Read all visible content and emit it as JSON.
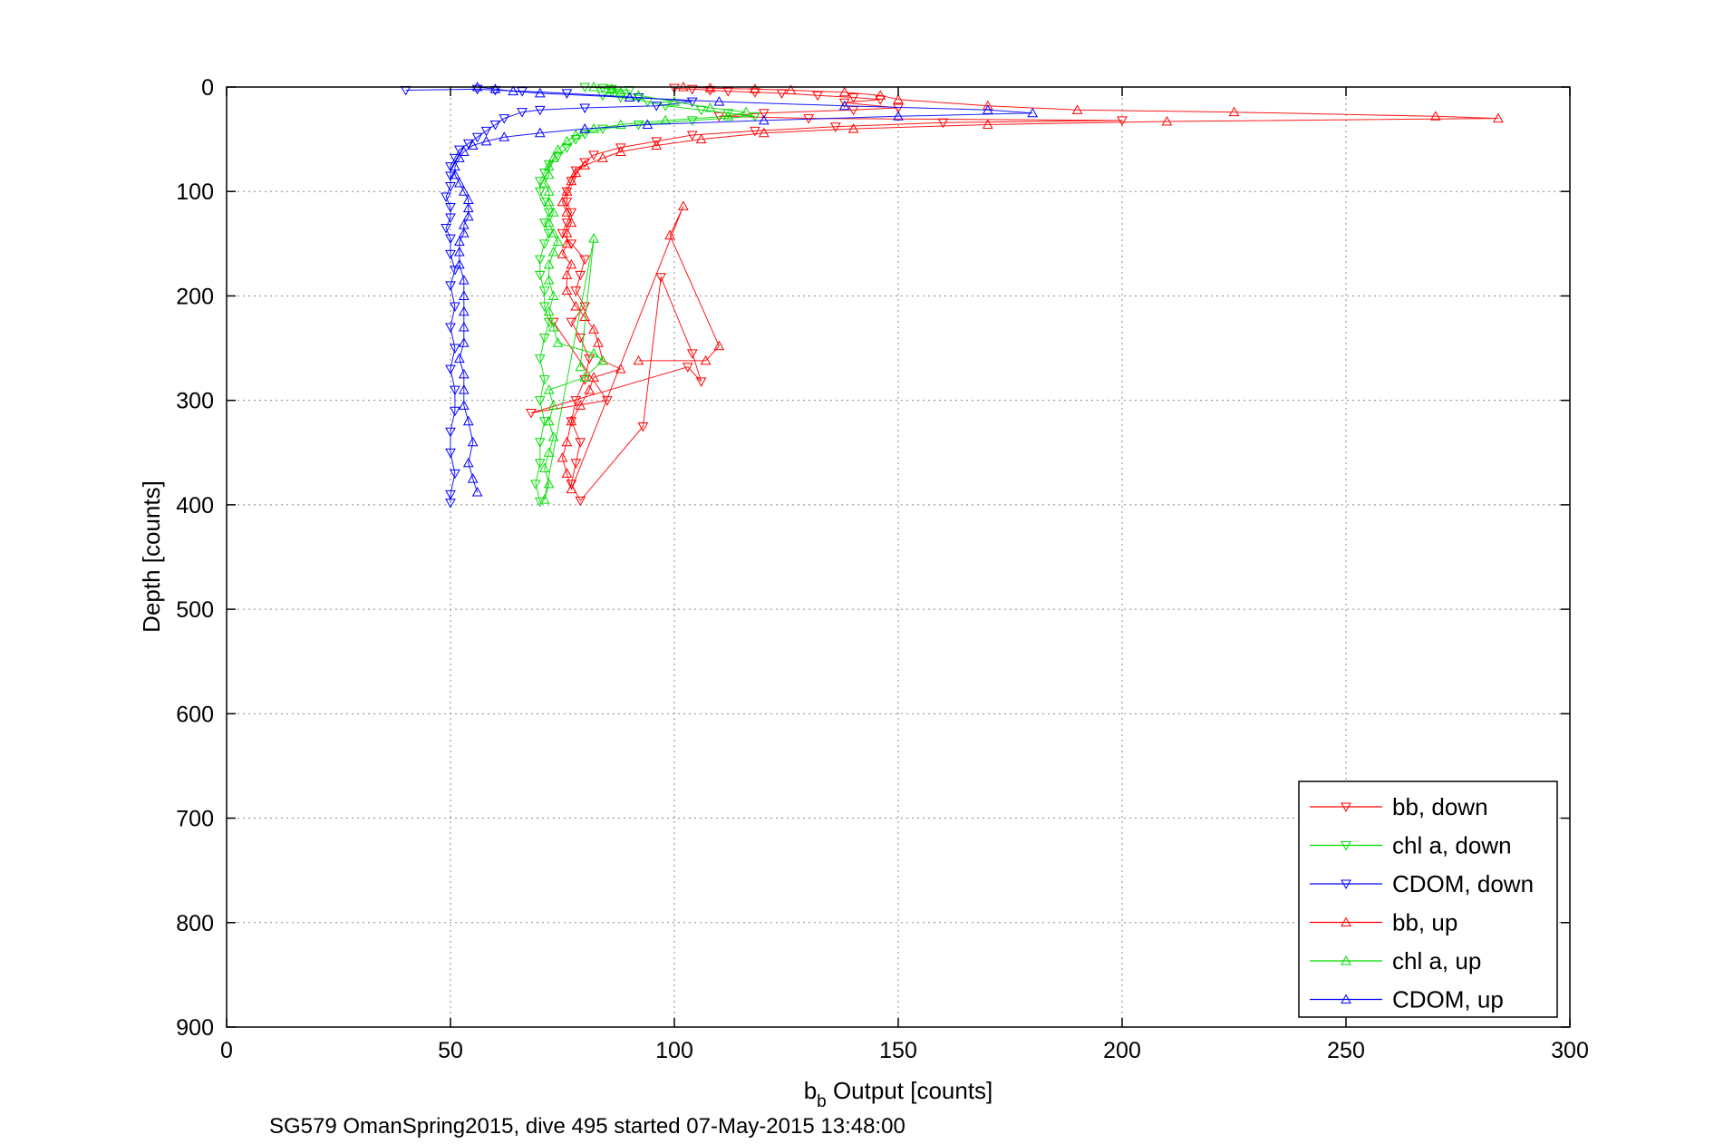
{
  "chart_data": {
    "type": "scatter",
    "title": "",
    "xlabel": {
      "main": "b",
      "sub": "b",
      "rest": " Output [counts]"
    },
    "ylabel": "Depth [counts]",
    "caption": "SG579 OmanSpring2015, dive 495 started 07-May-2015 13:48:00",
    "xlim": [
      0,
      300
    ],
    "ylim": [
      0,
      900
    ],
    "y_reversed": true,
    "grid": true,
    "legend_position": "bottom-right",
    "xticks": [
      "0",
      "50",
      "100",
      "150",
      "200",
      "250",
      "300"
    ],
    "yticks": [
      "0",
      "100",
      "200",
      "300",
      "400",
      "500",
      "600",
      "700",
      "800",
      "900"
    ],
    "series": [
      {
        "name": "bb, down",
        "color": "#ff0000",
        "marker": "triangle-down",
        "line": true,
        "points": [
          [
            100,
            1
          ],
          [
            104,
            2
          ],
          [
            108,
            3
          ],
          [
            112,
            4
          ],
          [
            118,
            5
          ],
          [
            124,
            6
          ],
          [
            132,
            8
          ],
          [
            140,
            10
          ],
          [
            146,
            12
          ],
          [
            138,
            15
          ],
          [
            150,
            20
          ],
          [
            140,
            22
          ],
          [
            120,
            25
          ],
          [
            110,
            28
          ],
          [
            130,
            30
          ],
          [
            200,
            32
          ],
          [
            160,
            34
          ],
          [
            136,
            38
          ],
          [
            118,
            42
          ],
          [
            104,
            46
          ],
          [
            96,
            52
          ],
          [
            88,
            58
          ],
          [
            82,
            65
          ],
          [
            80,
            72
          ],
          [
            78,
            80
          ],
          [
            77,
            90
          ],
          [
            76,
            100
          ],
          [
            76,
            110
          ],
          [
            77,
            120
          ],
          [
            76,
            130
          ],
          [
            75,
            140
          ],
          [
            77,
            150
          ],
          [
            80,
            165
          ],
          [
            79,
            180
          ],
          [
            78,
            195
          ],
          [
            80,
            210
          ],
          [
            77,
            225
          ],
          [
            79,
            240
          ],
          [
            81,
            260
          ],
          [
            80,
            280
          ],
          [
            78,
            300
          ],
          [
            77,
            320
          ],
          [
            79,
            340
          ],
          [
            78,
            360
          ],
          [
            77,
            380
          ],
          [
            79,
            396
          ],
          [
            93,
            325
          ],
          [
            97,
            182
          ],
          [
            104,
            255
          ],
          [
            106,
            282
          ],
          [
            103,
            268
          ],
          [
            68,
            312
          ],
          [
            85,
            300
          ],
          [
            73,
            225
          ]
        ]
      },
      {
        "name": "chl a, down",
        "color": "#00dd00",
        "marker": "triangle-down",
        "line": true,
        "points": [
          [
            80,
            0
          ],
          [
            84,
            1
          ],
          [
            86,
            2
          ],
          [
            90,
            3
          ],
          [
            86,
            5
          ],
          [
            84,
            8
          ],
          [
            88,
            10
          ],
          [
            94,
            14
          ],
          [
            98,
            18
          ],
          [
            106,
            22
          ],
          [
            112,
            25
          ],
          [
            118,
            28
          ],
          [
            104,
            32
          ],
          [
            92,
            36
          ],
          [
            84,
            40
          ],
          [
            80,
            45
          ],
          [
            78,
            50
          ],
          [
            76,
            58
          ],
          [
            74,
            66
          ],
          [
            72,
            74
          ],
          [
            71,
            82
          ],
          [
            70,
            90
          ],
          [
            70,
            100
          ],
          [
            71,
            110
          ],
          [
            72,
            120
          ],
          [
            71,
            130
          ],
          [
            72,
            140
          ],
          [
            71,
            150
          ],
          [
            70,
            165
          ],
          [
            70,
            180
          ],
          [
            71,
            195
          ],
          [
            71,
            210
          ],
          [
            72,
            225
          ],
          [
            71,
            240
          ],
          [
            70,
            260
          ],
          [
            71,
            280
          ],
          [
            70,
            300
          ],
          [
            71,
            320
          ],
          [
            70,
            340
          ],
          [
            70,
            360
          ],
          [
            69,
            380
          ],
          [
            70,
            397
          ]
        ]
      },
      {
        "name": "CDOM, down",
        "color": "#0000ff",
        "marker": "triangle-down",
        "line": true,
        "points": [
          [
            40,
            3
          ],
          [
            56,
            2
          ],
          [
            60,
            3
          ],
          [
            66,
            4
          ],
          [
            76,
            6
          ],
          [
            92,
            10
          ],
          [
            104,
            14
          ],
          [
            96,
            18
          ],
          [
            80,
            20
          ],
          [
            70,
            22
          ],
          [
            66,
            24
          ],
          [
            62,
            30
          ],
          [
            60,
            36
          ],
          [
            58,
            42
          ],
          [
            56,
            48
          ],
          [
            54,
            54
          ],
          [
            52,
            60
          ],
          [
            51,
            68
          ],
          [
            50,
            76
          ],
          [
            50,
            85
          ],
          [
            50,
            95
          ],
          [
            49,
            105
          ],
          [
            50,
            115
          ],
          [
            50,
            125
          ],
          [
            49,
            135
          ],
          [
            50,
            145
          ],
          [
            50,
            160
          ],
          [
            51,
            175
          ],
          [
            50,
            190
          ],
          [
            51,
            210
          ],
          [
            50,
            230
          ],
          [
            51,
            250
          ],
          [
            50,
            270
          ],
          [
            51,
            290
          ],
          [
            51,
            310
          ],
          [
            50,
            330
          ],
          [
            50,
            350
          ],
          [
            51,
            370
          ],
          [
            50,
            390
          ],
          [
            50,
            398
          ]
        ]
      },
      {
        "name": "bb, up",
        "color": "#ff0000",
        "marker": "triangle-up",
        "line": true,
        "points": [
          [
            102,
            0
          ],
          [
            108,
            1
          ],
          [
            118,
            2
          ],
          [
            126,
            3
          ],
          [
            138,
            5
          ],
          [
            146,
            8
          ],
          [
            150,
            12
          ],
          [
            170,
            18
          ],
          [
            190,
            22
          ],
          [
            225,
            24
          ],
          [
            270,
            28
          ],
          [
            284,
            30
          ],
          [
            210,
            33
          ],
          [
            170,
            36
          ],
          [
            140,
            40
          ],
          [
            120,
            44
          ],
          [
            106,
            50
          ],
          [
            96,
            56
          ],
          [
            88,
            62
          ],
          [
            84,
            68
          ],
          [
            80,
            75
          ],
          [
            78,
            82
          ],
          [
            77,
            90
          ],
          [
            76,
            100
          ],
          [
            75,
            110
          ],
          [
            76,
            120
          ],
          [
            77,
            130
          ],
          [
            76,
            140
          ],
          [
            76,
            150
          ],
          [
            75,
            160
          ],
          [
            77,
            170
          ],
          [
            76,
            180
          ],
          [
            76,
            195
          ],
          [
            78,
            210
          ],
          [
            80,
            220
          ],
          [
            82,
            232
          ],
          [
            83,
            245
          ],
          [
            84,
            262
          ],
          [
            88,
            270
          ],
          [
            82,
            278
          ],
          [
            81,
            290
          ],
          [
            79,
            305
          ],
          [
            77,
            320
          ],
          [
            76,
            340
          ],
          [
            75,
            355
          ],
          [
            76,
            370
          ],
          [
            77,
            385
          ],
          [
            102,
            114
          ],
          [
            99,
            142
          ],
          [
            110,
            248
          ],
          [
            107,
            262
          ],
          [
            92,
            262
          ]
        ]
      },
      {
        "name": "chl a, up",
        "color": "#00dd00",
        "marker": "triangle-up",
        "line": true,
        "points": [
          [
            82,
            0
          ],
          [
            86,
            2
          ],
          [
            88,
            5
          ],
          [
            92,
            8
          ],
          [
            100,
            14
          ],
          [
            108,
            20
          ],
          [
            116,
            24
          ],
          [
            112,
            28
          ],
          [
            98,
            32
          ],
          [
            88,
            36
          ],
          [
            82,
            40
          ],
          [
            78,
            46
          ],
          [
            76,
            52
          ],
          [
            74,
            60
          ],
          [
            73,
            68
          ],
          [
            72,
            76
          ],
          [
            72,
            84
          ],
          [
            71,
            92
          ],
          [
            72,
            100
          ],
          [
            72,
            110
          ],
          [
            73,
            120
          ],
          [
            72,
            130
          ],
          [
            73,
            140
          ],
          [
            74,
            148
          ],
          [
            73,
            158
          ],
          [
            72,
            170
          ],
          [
            72,
            185
          ],
          [
            73,
            200
          ],
          [
            72,
            215
          ],
          [
            73,
            230
          ],
          [
            74,
            245
          ],
          [
            82,
            255
          ],
          [
            84,
            262
          ],
          [
            80,
            278
          ],
          [
            72,
            290
          ],
          [
            73,
            305
          ],
          [
            72,
            320
          ],
          [
            73,
            335
          ],
          [
            72,
            350
          ],
          [
            71,
            365
          ],
          [
            72,
            380
          ],
          [
            71,
            395
          ],
          [
            82,
            145
          ],
          [
            79,
            268
          ]
        ]
      },
      {
        "name": "CDOM, up",
        "color": "#0000ff",
        "marker": "triangle-up",
        "line": true,
        "points": [
          [
            56,
            0
          ],
          [
            60,
            2
          ],
          [
            64,
            4
          ],
          [
            70,
            6
          ],
          [
            90,
            10
          ],
          [
            110,
            14
          ],
          [
            138,
            18
          ],
          [
            170,
            22
          ],
          [
            180,
            25
          ],
          [
            150,
            28
          ],
          [
            120,
            32
          ],
          [
            94,
            36
          ],
          [
            80,
            40
          ],
          [
            70,
            44
          ],
          [
            62,
            48
          ],
          [
            58,
            52
          ],
          [
            55,
            56
          ],
          [
            53,
            62
          ],
          [
            52,
            68
          ],
          [
            51,
            76
          ],
          [
            51,
            84
          ],
          [
            52,
            92
          ],
          [
            53,
            100
          ],
          [
            54,
            108
          ],
          [
            54,
            116
          ],
          [
            54,
            124
          ],
          [
            53,
            132
          ],
          [
            53,
            140
          ],
          [
            52,
            148
          ],
          [
            52,
            158
          ],
          [
            52,
            170
          ],
          [
            53,
            185
          ],
          [
            53,
            200
          ],
          [
            53,
            215
          ],
          [
            53,
            230
          ],
          [
            53,
            245
          ],
          [
            52,
            260
          ],
          [
            53,
            275
          ],
          [
            53,
            290
          ],
          [
            53,
            305
          ],
          [
            54,
            320
          ],
          [
            55,
            340
          ],
          [
            54,
            360
          ],
          [
            55,
            375
          ],
          [
            56,
            388
          ]
        ]
      }
    ]
  }
}
